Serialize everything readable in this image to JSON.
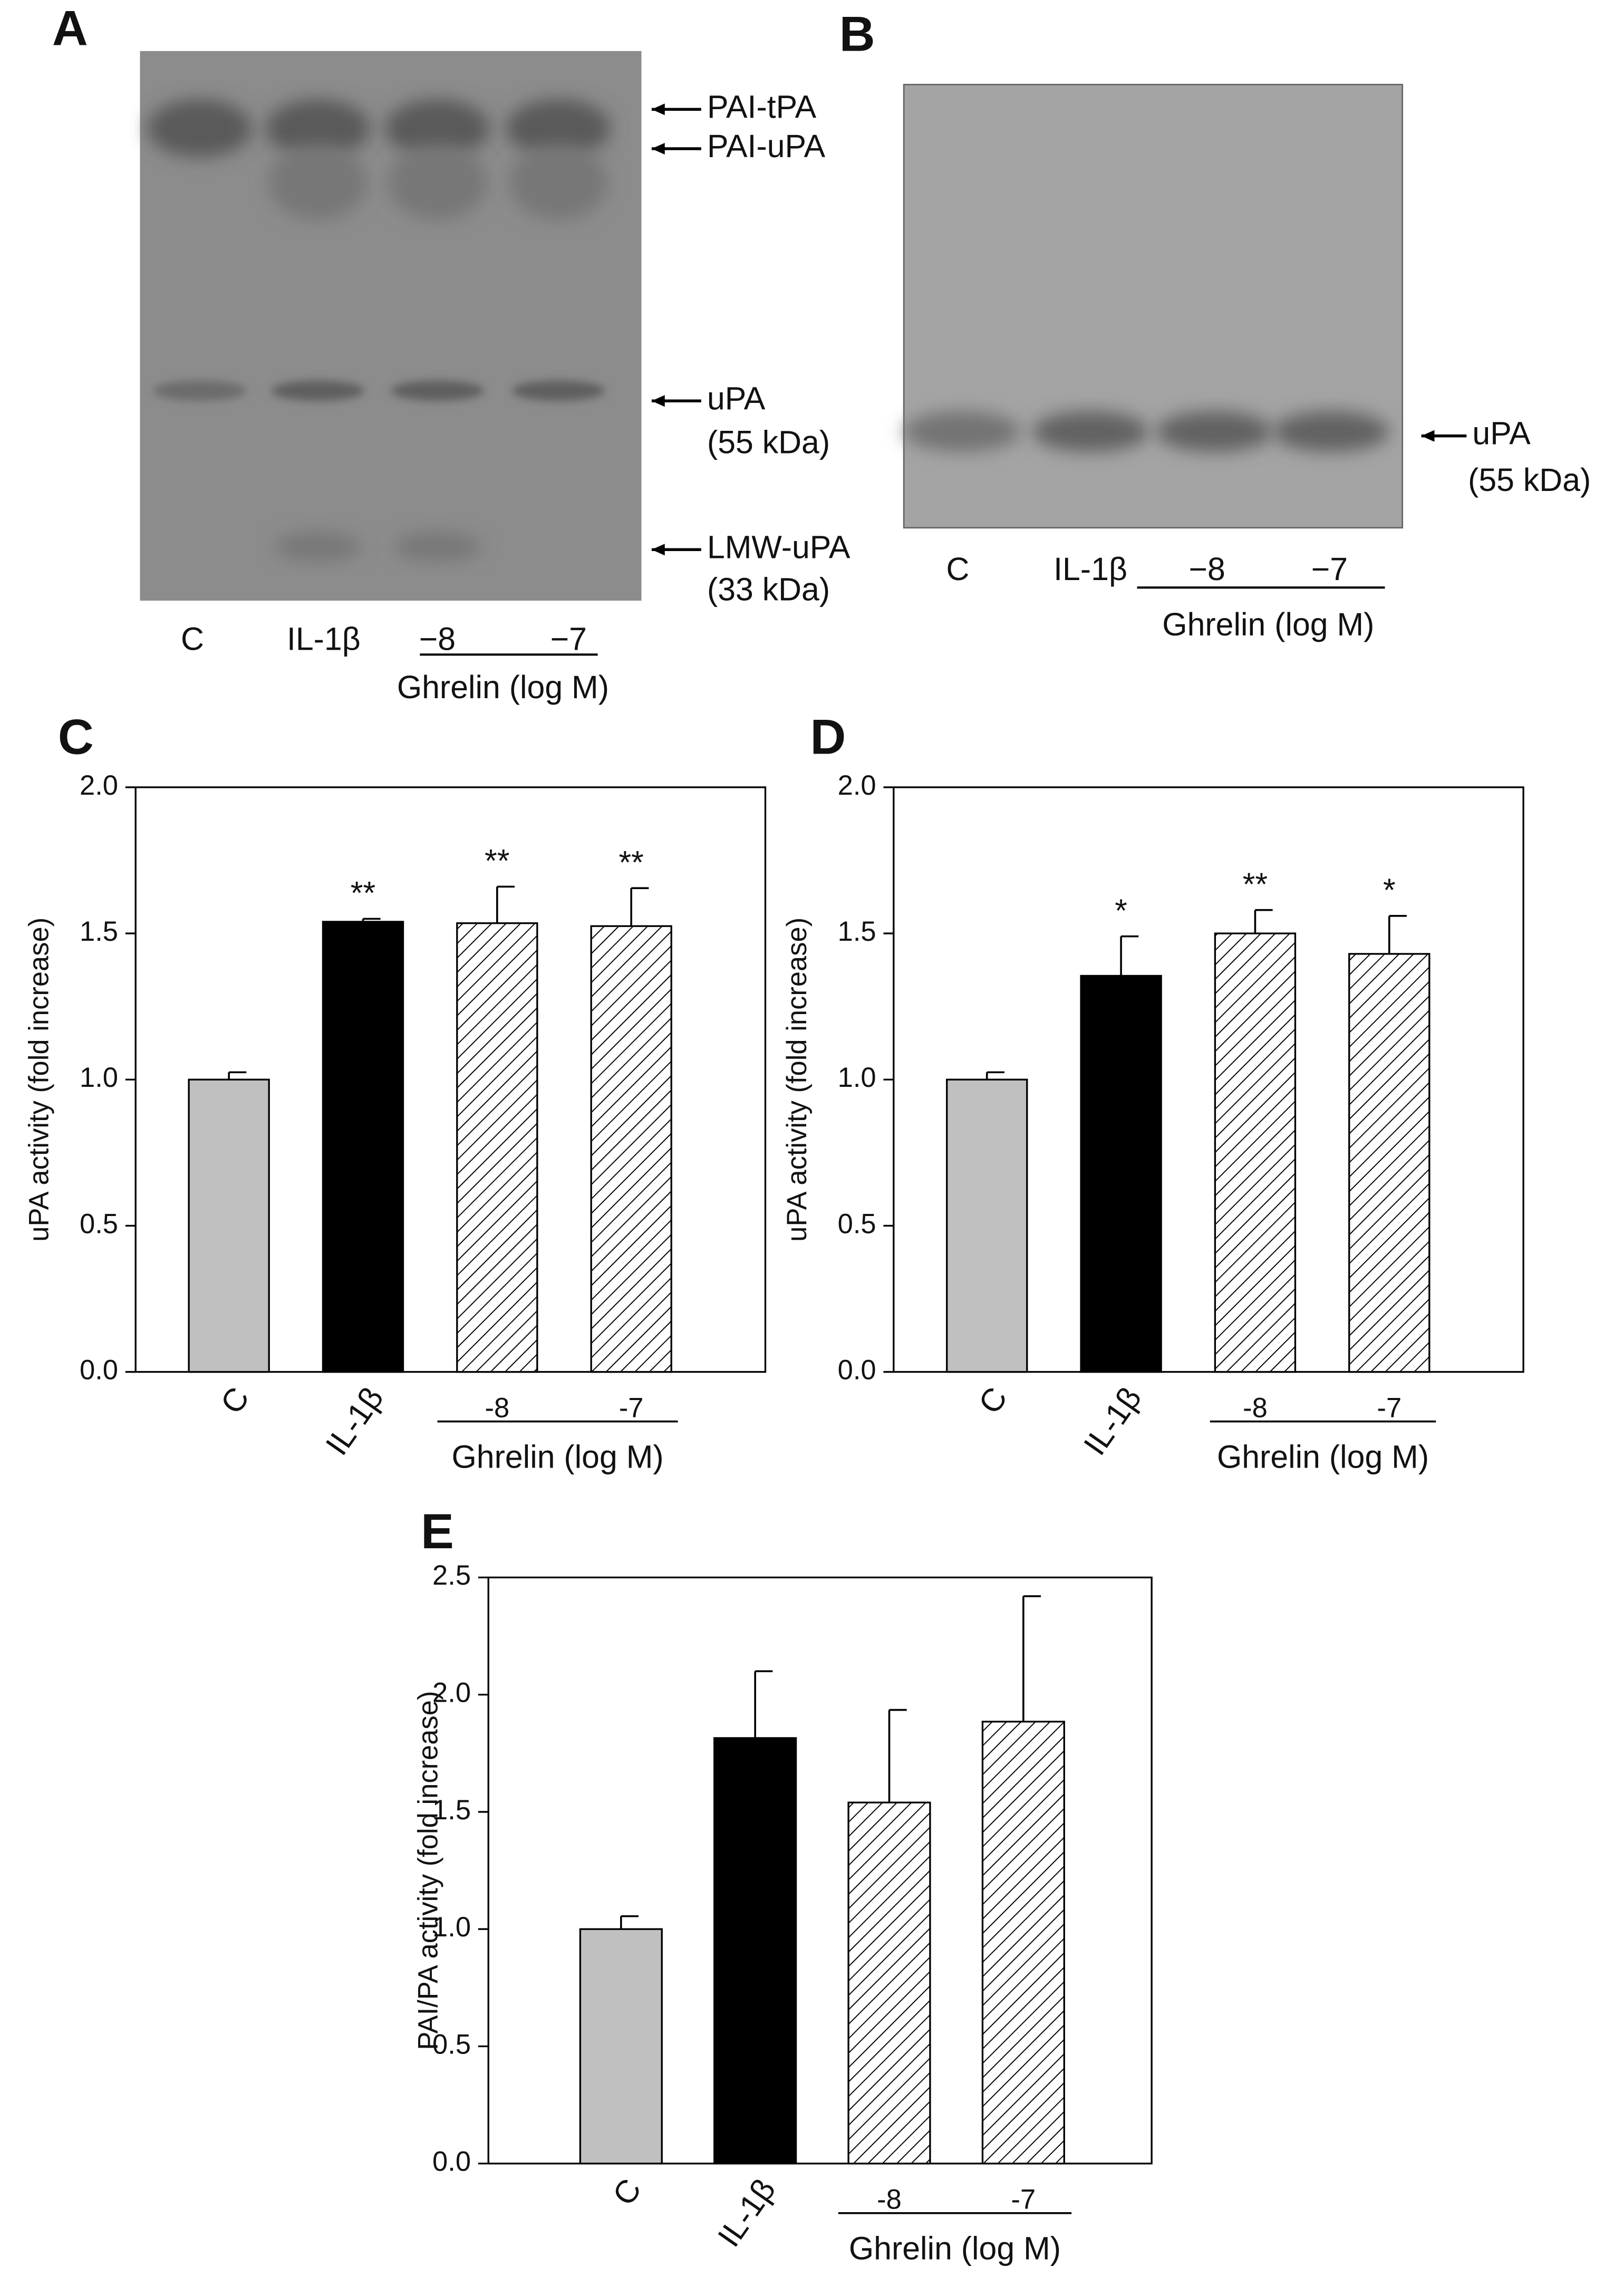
{
  "gels": [
    {
      "panel": "A",
      "lanes": [
        "C",
        "IL-1β",
        "−8",
        "−7"
      ],
      "group_label": "Ghrelin (log M)",
      "band_labels": [
        "PAI-tPA",
        "PAI-uPA",
        "uPA",
        "(55 kDa)",
        "LMW-uPA",
        "(33 kDa)"
      ]
    },
    {
      "panel": "B",
      "lanes": [
        "C",
        "IL-1β",
        "−8",
        "−7"
      ],
      "group_label": "Ghrelin (log M)",
      "band_labels": [
        "uPA",
        "(55 kDa)"
      ]
    }
  ],
  "chart_data": [
    {
      "type": "bar",
      "panel": "C",
      "ylabel": "uPA activity (fold increase)",
      "categories": [
        "C",
        "IL-1β",
        "-8",
        "-7"
      ],
      "group_label": "Ghrelin (log M)",
      "values": [
        1.0,
        1.54,
        1.535,
        1.525
      ],
      "errors": [
        0.025,
        0.01,
        0.125,
        0.13
      ],
      "annotations": [
        null,
        "**",
        "**",
        "**"
      ],
      "fills": [
        "#c0c0c0",
        "#000000",
        "hatched",
        "hatched"
      ],
      "ylim": [
        0,
        2
      ],
      "yticks": [
        {
          "value": 0,
          "label": "0.0"
        },
        {
          "value": 0.5,
          "label": "0.5"
        },
        {
          "value": 1,
          "label": "1.0"
        },
        {
          "value": 1.5,
          "label": "1.5"
        },
        {
          "value": 2,
          "label": "2.0"
        }
      ],
      "grid": false
    },
    {
      "type": "bar",
      "panel": "D",
      "ylabel": "uPA activity (fold increase)",
      "categories": [
        "C",
        "IL-1β",
        "-8",
        "-7"
      ],
      "group_label": "Ghrelin (log M)",
      "values": [
        1.0,
        1.355,
        1.5,
        1.43
      ],
      "errors": [
        0.025,
        0.135,
        0.08,
        0.13
      ],
      "annotations": [
        null,
        "*",
        "**",
        "*"
      ],
      "fills": [
        "#c0c0c0",
        "#000000",
        "hatched",
        "hatched"
      ],
      "ylim": [
        0,
        2
      ],
      "yticks": [
        {
          "value": 0,
          "label": "0.0"
        },
        {
          "value": 0.5,
          "label": "0.5"
        },
        {
          "value": 1,
          "label": "1.0"
        },
        {
          "value": 1.5,
          "label": "1.5"
        },
        {
          "value": 2,
          "label": "2.0"
        }
      ],
      "grid": false
    },
    {
      "type": "bar",
      "panel": "E",
      "ylabel": "PAI/PA activity (fold increase)",
      "categories": [
        "C",
        "IL-1β",
        "-8",
        "-7"
      ],
      "group_label": "Ghrelin (log M)",
      "values": [
        1.0,
        1.815,
        1.54,
        1.885
      ],
      "errors": [
        0.055,
        0.285,
        0.395,
        0.535
      ],
      "fills": [
        "#c0c0c0",
        "#000000",
        "hatched",
        "hatched"
      ],
      "ylim": [
        0,
        2.5
      ],
      "yticks": [
        {
          "value": 0,
          "label": "0.0"
        },
        {
          "value": 0.5,
          "label": "0.5"
        },
        {
          "value": 1,
          "label": "1.0"
        },
        {
          "value": 1.5,
          "label": "1.5"
        },
        {
          "value": 2,
          "label": "2.0"
        },
        {
          "value": 2.5,
          "label": "2.5"
        }
      ],
      "grid": false
    }
  ]
}
